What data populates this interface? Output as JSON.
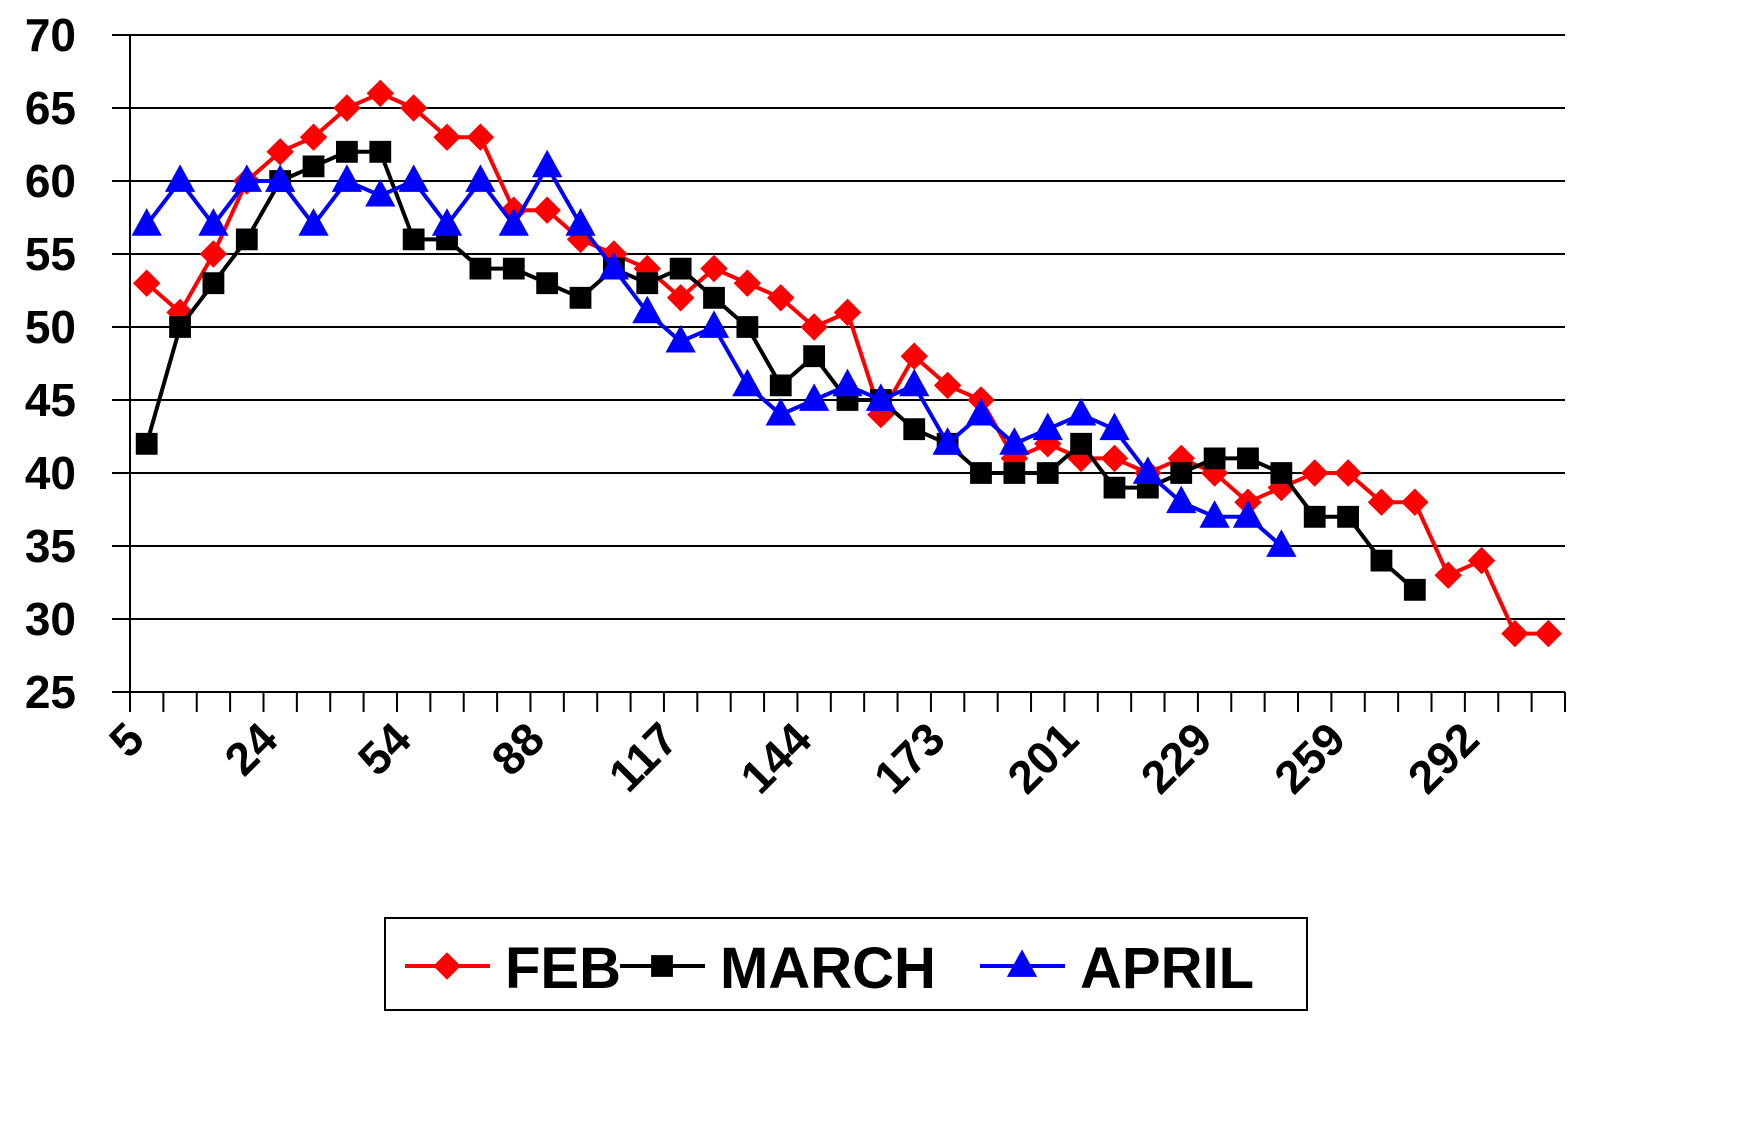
{
  "chart_data": {
    "type": "line",
    "categories": [
      "5",
      null,
      null,
      null,
      "24",
      null,
      null,
      null,
      "54",
      null,
      null,
      null,
      "88",
      null,
      null,
      null,
      "117",
      null,
      null,
      null,
      "144",
      null,
      null,
      null,
      "173",
      null,
      null,
      null,
      "201",
      null,
      null,
      null,
      "229",
      null,
      null,
      null,
      "259",
      null,
      null,
      null,
      "292",
      null,
      null
    ],
    "series": [
      {
        "name": "FEB",
        "color": "#ff0000",
        "marker": "diamond",
        "values": [
          53,
          51,
          55,
          60,
          62,
          63,
          65,
          66,
          65,
          63,
          63,
          58,
          58,
          56,
          55,
          54,
          52,
          54,
          53,
          52,
          50,
          51,
          44,
          48,
          46,
          45,
          41,
          42,
          41,
          41,
          40,
          41,
          40,
          38,
          39,
          40,
          40,
          38,
          38,
          33,
          34,
          29,
          29
        ]
      },
      {
        "name": "MARCH",
        "color": "#000000",
        "marker": "square",
        "values": [
          42,
          50,
          53,
          56,
          60,
          61,
          62,
          62,
          56,
          56,
          54,
          54,
          53,
          52,
          54,
          53,
          54,
          52,
          50,
          46,
          48,
          45,
          45,
          43,
          42,
          40,
          40,
          40,
          42,
          39,
          39,
          40,
          41,
          41,
          40,
          37,
          37,
          34,
          32,
          null,
          null,
          null,
          null
        ]
      },
      {
        "name": "APRIL",
        "color": "#0000ff",
        "marker": "triangle",
        "values": [
          57,
          60,
          57,
          60,
          60,
          57,
          60,
          59,
          60,
          57,
          60,
          57,
          61,
          57,
          54,
          51,
          49,
          50,
          46,
          44,
          45,
          46,
          45,
          46,
          42,
          44,
          42,
          43,
          44,
          43,
          40,
          38,
          37,
          37,
          35,
          null,
          null,
          null,
          null,
          null,
          null,
          null,
          null
        ]
      }
    ],
    "ylim": [
      25,
      70
    ],
    "yticks": [
      25,
      30,
      35,
      40,
      45,
      50,
      55,
      60,
      65,
      70
    ],
    "grid": true,
    "legend": "bottom"
  }
}
